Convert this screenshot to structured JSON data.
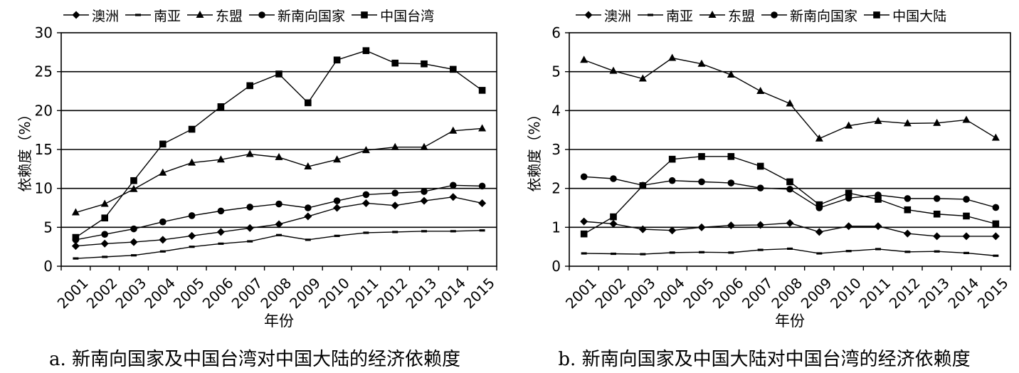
{
  "chart_data": [
    {
      "type": "line",
      "caption": "a. 新南向国家及中国台湾对中国大陆的经济依赖度",
      "xlabel": "年份",
      "ylabel": "依赖度（%）",
      "ylim": [
        0,
        30
      ],
      "yticks": [
        0,
        5,
        10,
        15,
        20,
        25,
        30
      ],
      "grid": true,
      "legend_position": "top",
      "x": [
        "2001",
        "2002",
        "2003",
        "2004",
        "2005",
        "2006",
        "2007",
        "2008",
        "2009",
        "2010",
        "2011",
        "2012",
        "2013",
        "2014",
        "2015"
      ],
      "series": [
        {
          "name": "澳洲",
          "marker": "diamond",
          "values": [
            2.6,
            2.9,
            3.1,
            3.4,
            3.9,
            4.4,
            4.9,
            5.4,
            6.4,
            7.5,
            8.1,
            7.8,
            8.4,
            8.9,
            8.1
          ]
        },
        {
          "name": "南亚",
          "marker": "dash",
          "values": [
            1.0,
            1.2,
            1.4,
            1.9,
            2.5,
            2.9,
            3.2,
            4.0,
            3.4,
            3.9,
            4.3,
            4.4,
            4.5,
            4.5,
            4.6
          ]
        },
        {
          "name": "东盟",
          "marker": "triangle",
          "values": [
            6.9,
            8.0,
            9.9,
            12.0,
            13.3,
            13.7,
            14.4,
            14.0,
            12.8,
            13.7,
            14.9,
            15.3,
            15.3,
            17.4,
            17.7
          ]
        },
        {
          "name": "新南向国家",
          "marker": "circle",
          "values": [
            3.4,
            4.1,
            4.8,
            5.7,
            6.5,
            7.1,
            7.6,
            8.0,
            7.5,
            8.4,
            9.2,
            9.4,
            9.6,
            10.4,
            10.3
          ]
        },
        {
          "name": "中国台湾",
          "marker": "square",
          "values": [
            3.7,
            6.2,
            11.0,
            15.7,
            17.6,
            20.5,
            23.2,
            24.7,
            21.0,
            26.5,
            27.7,
            26.1,
            26.0,
            25.3,
            22.6
          ]
        }
      ]
    },
    {
      "type": "line",
      "caption": "b. 新南向国家及中国大陆对中国台湾的经济依赖度",
      "xlabel": "年份",
      "ylabel": "依赖度（%）",
      "ylim": [
        0,
        6
      ],
      "yticks": [
        0,
        1,
        2,
        3,
        4,
        5,
        6
      ],
      "grid": true,
      "legend_position": "top",
      "x": [
        "2001",
        "2002",
        "2003",
        "2004",
        "2005",
        "2006",
        "2007",
        "2008",
        "2009",
        "2010",
        "2011",
        "2012",
        "2013",
        "2014",
        "2015"
      ],
      "series": [
        {
          "name": "澳洲",
          "marker": "diamond",
          "values": [
            1.15,
            1.09,
            0.95,
            0.92,
            1.0,
            1.05,
            1.06,
            1.11,
            0.88,
            1.03,
            1.03,
            0.84,
            0.77,
            0.77,
            0.77
          ]
        },
        {
          "name": "南亚",
          "marker": "dash",
          "values": [
            0.33,
            0.32,
            0.31,
            0.35,
            0.36,
            0.35,
            0.42,
            0.45,
            0.33,
            0.39,
            0.44,
            0.37,
            0.38,
            0.34,
            0.27
          ]
        },
        {
          "name": "东盟",
          "marker": "triangle",
          "values": [
            5.3,
            5.02,
            4.82,
            5.35,
            5.2,
            4.92,
            4.5,
            4.18,
            3.28,
            3.61,
            3.73,
            3.67,
            3.68,
            3.76,
            3.3
          ]
        },
        {
          "name": "新南向国家",
          "marker": "circle",
          "values": [
            2.3,
            2.25,
            2.08,
            2.2,
            2.17,
            2.14,
            2.01,
            1.98,
            1.5,
            1.75,
            1.83,
            1.74,
            1.74,
            1.72,
            1.51
          ]
        },
        {
          "name": "中国大陆",
          "marker": "square",
          "values": [
            0.83,
            1.27,
            2.07,
            2.75,
            2.82,
            2.82,
            2.57,
            2.17,
            1.58,
            1.88,
            1.72,
            1.45,
            1.34,
            1.29,
            1.09
          ]
        }
      ]
    }
  ]
}
